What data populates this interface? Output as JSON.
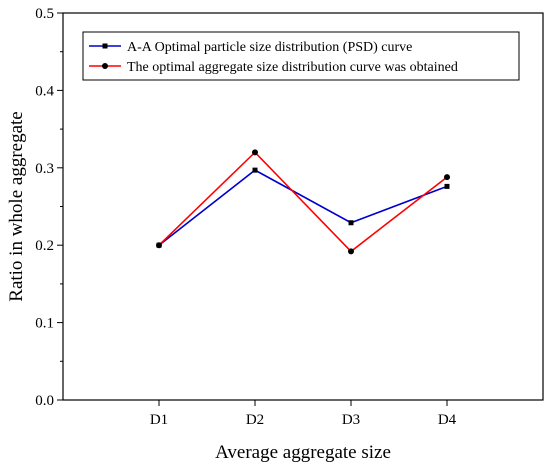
{
  "chart_data": {
    "type": "line",
    "categories": [
      "D1",
      "D2",
      "D3",
      "D4"
    ],
    "series": [
      {
        "name": "A-A Optimal particle size distribution (PSD) curve",
        "values": [
          0.2,
          0.297,
          0.229,
          0.276
        ],
        "color": "#0000cc",
        "marker": "square"
      },
      {
        "name": "The optimal aggregate size distribution curve was obtained",
        "values": [
          0.2,
          0.32,
          0.192,
          0.288
        ],
        "color": "#ff0000",
        "marker": "circle"
      }
    ],
    "xlabel": "Average aggregate size",
    "ylabel": "Ratio in whole aggregate",
    "ylim": [
      0.0,
      0.5
    ],
    "yticks": [
      0.0,
      0.1,
      0.2,
      0.3,
      0.4,
      0.5
    ],
    "ytick_labels": [
      "0.0",
      "0.1",
      "0.2",
      "0.3",
      "0.4",
      "0.5"
    ],
    "grid": false,
    "legend_position": "top-left"
  }
}
